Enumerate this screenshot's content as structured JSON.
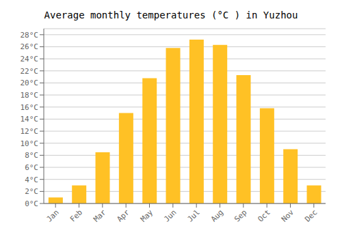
{
  "chart_data": {
    "type": "bar",
    "title": "Average monthly temperatures (°C ) in Yuzhou",
    "categories": [
      "Jan",
      "Feb",
      "Mar",
      "Apr",
      "May",
      "Jun",
      "Jul",
      "Aug",
      "Sep",
      "Oct",
      "Nov",
      "Dec"
    ],
    "values": [
      1,
      3,
      8.5,
      15,
      20.8,
      25.8,
      27.2,
      26.3,
      21.3,
      15.8,
      9,
      3
    ],
    "color": "#FFC125",
    "ylim": [
      0,
      29
    ],
    "yticks": [
      {
        "value": 0,
        "label": "0°C"
      },
      {
        "value": 2,
        "label": "2°C"
      },
      {
        "value": 4,
        "label": "4°C"
      },
      {
        "value": 6,
        "label": "6°C"
      },
      {
        "value": 8,
        "label": "8°C"
      },
      {
        "value": 10,
        "label": "10°C"
      },
      {
        "value": 12,
        "label": "12°C"
      },
      {
        "value": 14,
        "label": "14°C"
      },
      {
        "value": 16,
        "label": "16°C"
      },
      {
        "value": 18,
        "label": "18°C"
      },
      {
        "value": 20,
        "label": "20°C"
      },
      {
        "value": 22,
        "label": "22°C"
      },
      {
        "value": 24,
        "label": "24°C"
      },
      {
        "value": 26,
        "label": "26°C"
      },
      {
        "value": 28,
        "label": "28°C"
      }
    ],
    "grid": true
  }
}
